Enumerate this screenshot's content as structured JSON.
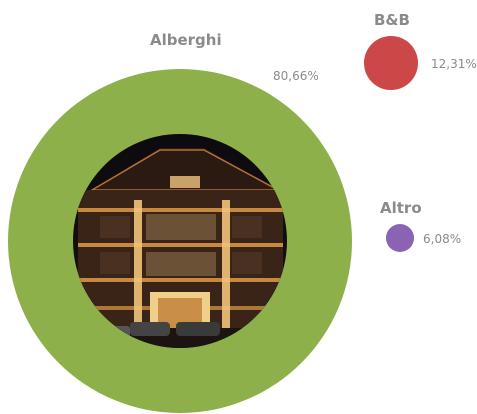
{
  "chart_data": {
    "type": "bubble",
    "title": "",
    "categories": [
      "Alberghi",
      "B&B",
      "Altro"
    ],
    "values": [
      80.66,
      12.31,
      6.08
    ],
    "value_labels": [
      "80,66%",
      "12,31%",
      "6,08%"
    ],
    "colors": [
      "#8db04a",
      "#cc4747",
      "#8b63b3"
    ],
    "center_image": "hotel building at night"
  }
}
